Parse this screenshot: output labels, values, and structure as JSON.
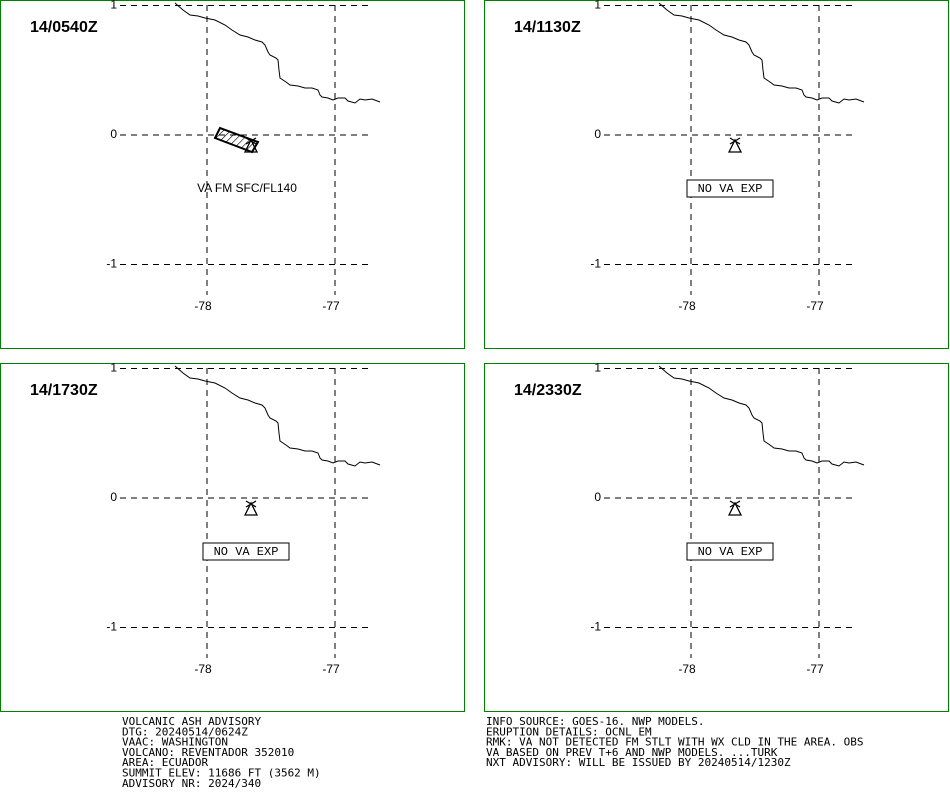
{
  "panels": [
    {
      "time": "14/0540Z",
      "annotation": "VA FM SFC/FL140",
      "boxed": false
    },
    {
      "time": "14/1130Z",
      "annotation": "NO VA EXP",
      "boxed": true
    },
    {
      "time": "14/1730Z",
      "annotation": "NO VA EXP",
      "boxed": true
    },
    {
      "time": "14/2330Z",
      "annotation": "NO VA EXP",
      "boxed": true
    }
  ],
  "lat_ticks": [
    1,
    0,
    -1
  ],
  "lon_ticks": [
    -78,
    -77
  ],
  "advisory_left": [
    "VOLCANIC ASH ADVISORY",
    "DTG: 20240514/0624Z",
    "VAAC: WASHINGTON",
    "VOLCANO: REVENTADOR 352010",
    "AREA: ECUADOR",
    "SUMMIT ELEV: 11686 FT (3562 M)",
    "ADVISORY NR: 2024/340"
  ],
  "advisory_right": [
    "INFO SOURCE: GOES-16. NWP MODELS.",
    "ERUPTION DETAILS: OCNL EM",
    "RMK: VA NOT DETECTED FM STLT WITH WX CLD IN THE AREA. OBS",
    "VA BASED ON PREV T+6 AND NWP MODELS. ...TURK",
    "NXT ADVISORY: WILL BE ISSUED BY 20240514/1230Z"
  ]
}
